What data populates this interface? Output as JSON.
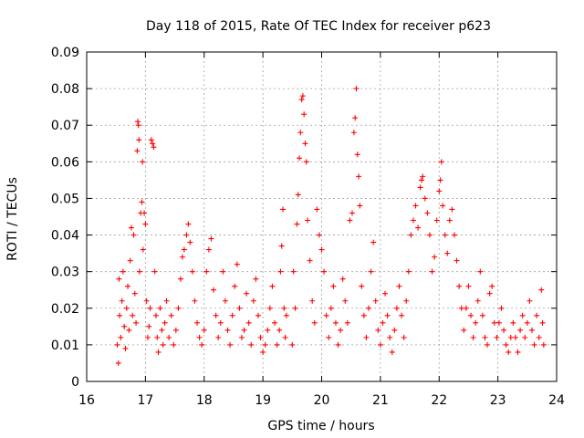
{
  "chart_data": {
    "type": "scatter",
    "title": "Day 118 of 2015, Rate Of TEC Index for receiver p623",
    "xlabel": "GPS time / hours",
    "ylabel": "ROTI / TECUs",
    "xlim": [
      16,
      24
    ],
    "ylim": [
      0,
      0.09
    ],
    "x_ticks": [
      "16",
      "17",
      "18",
      "19",
      "20",
      "21",
      "22",
      "23",
      "24"
    ],
    "y_ticks": [
      "0",
      "0.01",
      "0.02",
      "0.03",
      "0.04",
      "0.05",
      "0.06",
      "0.07",
      "0.08",
      "0.09"
    ],
    "grid": true,
    "marker": "plus",
    "color": "#ff0000",
    "series": [
      {
        "name": "p623 ROTI",
        "points": [
          [
            16.52,
            0.01
          ],
          [
            16.54,
            0.005
          ],
          [
            16.55,
            0.028
          ],
          [
            16.56,
            0.018
          ],
          [
            16.58,
            0.012
          ],
          [
            16.6,
            0.022
          ],
          [
            16.62,
            0.03
          ],
          [
            16.64,
            0.015
          ],
          [
            16.66,
            0.009
          ],
          [
            16.68,
            0.02
          ],
          [
            16.7,
            0.026
          ],
          [
            16.72,
            0.014
          ],
          [
            16.74,
            0.033
          ],
          [
            16.76,
            0.042
          ],
          [
            16.78,
            0.018
          ],
          [
            16.8,
            0.04
          ],
          [
            16.82,
            0.024
          ],
          [
            16.84,
            0.016
          ],
          [
            16.86,
            0.063
          ],
          [
            16.87,
            0.071
          ],
          [
            16.88,
            0.07
          ],
          [
            16.89,
            0.066
          ],
          [
            16.9,
            0.03
          ],
          [
            16.92,
            0.046
          ],
          [
            16.94,
            0.049
          ],
          [
            16.95,
            0.06
          ],
          [
            16.96,
            0.036
          ],
          [
            16.98,
            0.046
          ],
          [
            17.0,
            0.043
          ],
          [
            17.02,
            0.022
          ],
          [
            17.04,
            0.012
          ],
          [
            17.06,
            0.015
          ],
          [
            17.08,
            0.02
          ],
          [
            17.1,
            0.066
          ],
          [
            17.12,
            0.065
          ],
          [
            17.14,
            0.064
          ],
          [
            17.16,
            0.03
          ],
          [
            17.18,
            0.018
          ],
          [
            17.2,
            0.012
          ],
          [
            17.22,
            0.008
          ],
          [
            17.25,
            0.02
          ],
          [
            17.28,
            0.014
          ],
          [
            17.3,
            0.01
          ],
          [
            17.33,
            0.016
          ],
          [
            17.36,
            0.022
          ],
          [
            17.4,
            0.012
          ],
          [
            17.44,
            0.018
          ],
          [
            17.48,
            0.01
          ],
          [
            17.52,
            0.014
          ],
          [
            17.56,
            0.02
          ],
          [
            17.6,
            0.028
          ],
          [
            17.63,
            0.034
          ],
          [
            17.66,
            0.036
          ],
          [
            17.7,
            0.04
          ],
          [
            17.73,
            0.043
          ],
          [
            17.76,
            0.038
          ],
          [
            17.8,
            0.03
          ],
          [
            17.84,
            0.022
          ],
          [
            17.88,
            0.016
          ],
          [
            17.92,
            0.012
          ],
          [
            17.96,
            0.01
          ],
          [
            18.0,
            0.014
          ],
          [
            18.04,
            0.03
          ],
          [
            18.08,
            0.036
          ],
          [
            18.12,
            0.039
          ],
          [
            18.16,
            0.025
          ],
          [
            18.2,
            0.018
          ],
          [
            18.24,
            0.012
          ],
          [
            18.28,
            0.016
          ],
          [
            18.32,
            0.03
          ],
          [
            18.36,
            0.022
          ],
          [
            18.4,
            0.014
          ],
          [
            18.44,
            0.01
          ],
          [
            18.48,
            0.018
          ],
          [
            18.52,
            0.026
          ],
          [
            18.56,
            0.032
          ],
          [
            18.6,
            0.02
          ],
          [
            18.64,
            0.012
          ],
          [
            18.68,
            0.014
          ],
          [
            18.72,
            0.024
          ],
          [
            18.76,
            0.016
          ],
          [
            18.8,
            0.01
          ],
          [
            18.84,
            0.022
          ],
          [
            18.88,
            0.028
          ],
          [
            18.92,
            0.018
          ],
          [
            18.96,
            0.012
          ],
          [
            19.0,
            0.008
          ],
          [
            19.04,
            0.01
          ],
          [
            19.08,
            0.014
          ],
          [
            19.12,
            0.02
          ],
          [
            19.16,
            0.026
          ],
          [
            19.2,
            0.016
          ],
          [
            19.24,
            0.01
          ],
          [
            19.28,
            0.014
          ],
          [
            19.3,
            0.03
          ],
          [
            19.32,
            0.037
          ],
          [
            19.34,
            0.047
          ],
          [
            19.36,
            0.02
          ],
          [
            19.38,
            0.012
          ],
          [
            19.4,
            0.018
          ],
          [
            19.5,
            0.01
          ],
          [
            19.52,
            0.03
          ],
          [
            19.55,
            0.02
          ],
          [
            19.58,
            0.043
          ],
          [
            19.6,
            0.051
          ],
          [
            19.62,
            0.061
          ],
          [
            19.64,
            0.068
          ],
          [
            19.66,
            0.077
          ],
          [
            19.68,
            0.078
          ],
          [
            19.7,
            0.073
          ],
          [
            19.72,
            0.065
          ],
          [
            19.74,
            0.06
          ],
          [
            19.76,
            0.044
          ],
          [
            19.8,
            0.033
          ],
          [
            19.84,
            0.022
          ],
          [
            19.88,
            0.016
          ],
          [
            19.92,
            0.047
          ],
          [
            19.96,
            0.04
          ],
          [
            20.0,
            0.036
          ],
          [
            20.04,
            0.03
          ],
          [
            20.08,
            0.018
          ],
          [
            20.12,
            0.012
          ],
          [
            20.16,
            0.02
          ],
          [
            20.2,
            0.026
          ],
          [
            20.24,
            0.016
          ],
          [
            20.28,
            0.01
          ],
          [
            20.32,
            0.014
          ],
          [
            20.36,
            0.028
          ],
          [
            20.4,
            0.022
          ],
          [
            20.44,
            0.016
          ],
          [
            20.48,
            0.044
          ],
          [
            20.52,
            0.046
          ],
          [
            20.55,
            0.068
          ],
          [
            20.57,
            0.072
          ],
          [
            20.59,
            0.08
          ],
          [
            20.61,
            0.062
          ],
          [
            20.63,
            0.056
          ],
          [
            20.65,
            0.048
          ],
          [
            20.68,
            0.026
          ],
          [
            20.72,
            0.018
          ],
          [
            20.76,
            0.012
          ],
          [
            20.8,
            0.02
          ],
          [
            20.84,
            0.03
          ],
          [
            20.88,
            0.038
          ],
          [
            20.92,
            0.022
          ],
          [
            20.96,
            0.014
          ],
          [
            21.0,
            0.01
          ],
          [
            21.04,
            0.016
          ],
          [
            21.08,
            0.024
          ],
          [
            21.12,
            0.018
          ],
          [
            21.16,
            0.012
          ],
          [
            21.2,
            0.008
          ],
          [
            21.24,
            0.014
          ],
          [
            21.28,
            0.02
          ],
          [
            21.32,
            0.026
          ],
          [
            21.36,
            0.018
          ],
          [
            21.4,
            0.012
          ],
          [
            21.44,
            0.022
          ],
          [
            21.48,
            0.03
          ],
          [
            21.52,
            0.04
          ],
          [
            21.56,
            0.044
          ],
          [
            21.6,
            0.048
          ],
          [
            21.64,
            0.042
          ],
          [
            21.68,
            0.053
          ],
          [
            21.7,
            0.055
          ],
          [
            21.72,
            0.056
          ],
          [
            21.76,
            0.05
          ],
          [
            21.8,
            0.046
          ],
          [
            21.84,
            0.04
          ],
          [
            21.88,
            0.03
          ],
          [
            21.92,
            0.034
          ],
          [
            21.96,
            0.044
          ],
          [
            22.0,
            0.052
          ],
          [
            22.02,
            0.055
          ],
          [
            22.04,
            0.06
          ],
          [
            22.06,
            0.048
          ],
          [
            22.1,
            0.04
          ],
          [
            22.14,
            0.035
          ],
          [
            22.18,
            0.044
          ],
          [
            22.22,
            0.047
          ],
          [
            22.26,
            0.04
          ],
          [
            22.3,
            0.033
          ],
          [
            22.34,
            0.026
          ],
          [
            22.38,
            0.02
          ],
          [
            22.42,
            0.014
          ],
          [
            22.46,
            0.02
          ],
          [
            22.5,
            0.026
          ],
          [
            22.54,
            0.018
          ],
          [
            22.58,
            0.012
          ],
          [
            22.62,
            0.016
          ],
          [
            22.66,
            0.022
          ],
          [
            22.7,
            0.03
          ],
          [
            22.74,
            0.018
          ],
          [
            22.78,
            0.012
          ],
          [
            22.82,
            0.01
          ],
          [
            22.86,
            0.024
          ],
          [
            22.9,
            0.026
          ],
          [
            22.94,
            0.016
          ],
          [
            22.98,
            0.012
          ],
          [
            23.02,
            0.016
          ],
          [
            23.06,
            0.02
          ],
          [
            23.1,
            0.014
          ],
          [
            23.14,
            0.01
          ],
          [
            23.18,
            0.008
          ],
          [
            23.22,
            0.012
          ],
          [
            23.26,
            0.016
          ],
          [
            23.3,
            0.012
          ],
          [
            23.34,
            0.008
          ],
          [
            23.38,
            0.014
          ],
          [
            23.42,
            0.018
          ],
          [
            23.46,
            0.012
          ],
          [
            23.5,
            0.016
          ],
          [
            23.54,
            0.022
          ],
          [
            23.58,
            0.014
          ],
          [
            23.62,
            0.01
          ],
          [
            23.66,
            0.018
          ],
          [
            23.7,
            0.012
          ],
          [
            23.74,
            0.025
          ],
          [
            23.76,
            0.016
          ],
          [
            23.78,
            0.01
          ]
        ]
      }
    ]
  }
}
